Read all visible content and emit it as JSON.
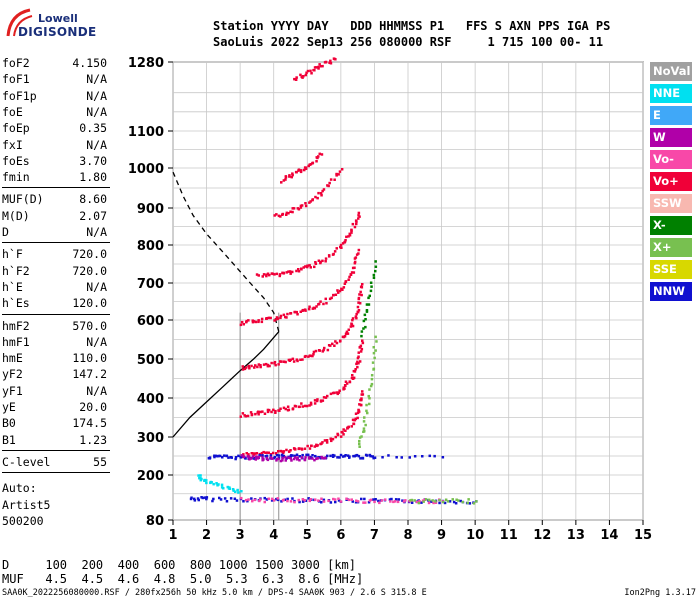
{
  "logo": {
    "line1": "Lowell",
    "line2": "DIGISONDE"
  },
  "header": {
    "labels": "Station YYYY DAY   DDD HHMMSS P1   FFS S AXN PPS IGA PS",
    "values": "SaoLuis 2022 Sep13 256 080000 RSF     1 715 100 00- 11"
  },
  "params": {
    "group1": [
      {
        "k": "foF2",
        "v": "4.150"
      },
      {
        "k": "foF1",
        "v": "N/A"
      },
      {
        "k": "foF1p",
        "v": "N/A"
      },
      {
        "k": "foE",
        "v": "N/A"
      },
      {
        "k": "foEp",
        "v": "0.35"
      },
      {
        "k": "fxI",
        "v": "N/A"
      },
      {
        "k": "foEs",
        "v": "3.70"
      },
      {
        "k": "fmin",
        "v": "1.80"
      }
    ],
    "group2": [
      {
        "k": "MUF(D)",
        "v": "8.60"
      },
      {
        "k": "M(D)",
        "v": "2.07"
      },
      {
        "k": "D",
        "v": "N/A"
      }
    ],
    "group3": [
      {
        "k": "h`F",
        "v": "720.0"
      },
      {
        "k": "h`F2",
        "v": "720.0"
      },
      {
        "k": "h`E",
        "v": "N/A"
      },
      {
        "k": "h`Es",
        "v": "120.0"
      }
    ],
    "group4": [
      {
        "k": "hmF2",
        "v": "570.0"
      },
      {
        "k": "hmF1",
        "v": "N/A"
      },
      {
        "k": "hmE",
        "v": "110.0"
      },
      {
        "k": "yF2",
        "v": "147.2"
      },
      {
        "k": "yF1",
        "v": "N/A"
      },
      {
        "k": "yE",
        "v": "20.0"
      },
      {
        "k": "B0",
        "v": "174.5"
      },
      {
        "k": "B1",
        "v": "1.23"
      }
    ],
    "group5": [
      {
        "k": "C-level",
        "v": "55"
      }
    ],
    "auto": [
      "Auto:",
      "Artist5",
      "500200"
    ]
  },
  "legend": [
    {
      "label": "NoVal",
      "color": "#a0a0a0"
    },
    {
      "label": "NNE",
      "color": "#00e0f0"
    },
    {
      "label": "E",
      "color": "#40a8f8"
    },
    {
      "label": "W",
      "color": "#b000a8"
    },
    {
      "label": "Vo-",
      "color": "#f848a8"
    },
    {
      "label": "Vo+",
      "color": "#f00038"
    },
    {
      "label": "SSW",
      "color": "#f8b8b0"
    },
    {
      "label": "X-",
      "color": "#008000"
    },
    {
      "label": "X+",
      "color": "#78c050"
    },
    {
      "label": "SSE",
      "color": "#d8d800"
    },
    {
      "label": "NNW",
      "color": "#1010d0"
    }
  ],
  "chart_data": {
    "type": "scatter",
    "title": "",
    "xlabel": "",
    "ylabel": "",
    "xlim": [
      1,
      15
    ],
    "x_ticks": [
      1,
      2,
      3,
      4,
      5,
      6,
      7,
      8,
      9,
      10,
      11,
      12,
      13,
      14,
      15
    ],
    "y_ticks": [
      80,
      200,
      300,
      400,
      500,
      600,
      700,
      800,
      900,
      1000,
      1100,
      1280
    ],
    "y_grid": [
      80,
      150,
      200,
      250,
      300,
      350,
      400,
      450,
      500,
      550,
      600,
      650,
      700,
      750,
      800,
      850,
      900,
      950,
      1000,
      1050,
      1100,
      1150,
      1200,
      1280
    ],
    "marker_lines_x": [
      3.0,
      4.15
    ],
    "profile_curve": {
      "x": [
        1.0,
        1.5,
        2.0,
        2.5,
        3.0,
        3.4,
        3.7,
        3.9,
        4.05,
        4.15
      ],
      "y": [
        300,
        350,
        390,
        430,
        470,
        500,
        525,
        545,
        560,
        570
      ]
    },
    "profile_dashed": {
      "x": [
        4.15,
        4.0,
        3.7,
        3.3,
        2.9,
        2.5,
        2.0,
        1.6,
        1.3,
        1.0
      ],
      "y": [
        570,
        620,
        660,
        700,
        740,
        780,
        830,
        880,
        930,
        990
      ]
    },
    "traces": [
      {
        "name": "Es band",
        "color": "#1010d0",
        "x": [
          1.5,
          2,
          3,
          4,
          5,
          6,
          7,
          8,
          9,
          10
        ],
        "y": [
          140,
          139,
          138,
          137,
          136,
          135,
          134,
          134,
          133,
          133
        ]
      },
      {
        "name": "Es band",
        "color": "#f848a8",
        "x": [
          3,
          4,
          5,
          6,
          7,
          8,
          9
        ],
        "y": [
          137,
          136,
          135,
          135,
          134,
          134,
          133
        ]
      },
      {
        "name": "Es band",
        "color": "#78c050",
        "x": [
          8,
          9,
          10
        ],
        "y": [
          134,
          133,
          133
        ]
      },
      {
        "name": "F 1st hop",
        "color": "#f00038",
        "x": [
          3.0,
          3.5,
          4.0,
          4.5,
          5.0,
          5.5,
          6.0,
          6.3,
          6.5,
          6.6
        ],
        "y": [
          255,
          258,
          262,
          268,
          276,
          290,
          310,
          335,
          370,
          420
        ]
      },
      {
        "name": "F 1st hop",
        "color": "#1010d0",
        "x": [
          2.0,
          2.5,
          3.0,
          3.5,
          4.0,
          4.5,
          5.0,
          5.5,
          6.0,
          6.5,
          7.0,
          9.0
        ],
        "y": [
          250,
          250,
          250,
          250,
          251,
          251,
          252,
          252,
          252,
          252,
          250,
          250
        ]
      },
      {
        "name": "F 2nd hop",
        "color": "#f00038",
        "x": [
          3.0,
          3.5,
          4.0,
          4.5,
          5.0,
          5.5,
          6.0,
          6.3,
          6.5,
          6.6
        ],
        "y": [
          360,
          365,
          370,
          378,
          388,
          402,
          425,
          455,
          500,
          550
        ]
      },
      {
        "name": "F 3rd hop",
        "color": "#f00038",
        "x": [
          3.0,
          3.5,
          4.0,
          4.5,
          5.0,
          5.5,
          6.0,
          6.3,
          6.5,
          6.6
        ],
        "y": [
          480,
          485,
          490,
          498,
          510,
          528,
          555,
          590,
          640,
          700
        ]
      },
      {
        "name": "F 4th hop",
        "color": "#f00038",
        "x": [
          3.0,
          3.5,
          4.0,
          4.5,
          5.0,
          5.5,
          6.0,
          6.3,
          6.5
        ],
        "y": [
          595,
          600,
          608,
          618,
          632,
          652,
          685,
          730,
          790
        ]
      },
      {
        "name": "F 5th hop",
        "color": "#f00038",
        "x": [
          3.5,
          4.0,
          4.5,
          5.0,
          5.5,
          6.0,
          6.3,
          6.5
        ],
        "y": [
          722,
          725,
          732,
          745,
          765,
          800,
          840,
          890
        ]
      },
      {
        "name": "F 6th hop",
        "color": "#f00038",
        "x": [
          4.0,
          4.5,
          5.0,
          5.5,
          6.0
        ],
        "y": [
          880,
          895,
          915,
          950,
          1000
        ]
      },
      {
        "name": "F 7th hop",
        "color": "#f00038",
        "x": [
          4.2,
          4.6,
          5.0,
          5.4
        ],
        "y": [
          970,
          990,
          1010,
          1040
        ]
      },
      {
        "name": "F 8th hop",
        "color": "#f00038",
        "x": [
          4.6,
          5.0,
          5.4,
          5.8
        ],
        "y": [
          1240,
          1255,
          1275,
          1290
        ]
      },
      {
        "name": "X trace",
        "color": "#78c050",
        "x": [
          6.5,
          6.7,
          6.9,
          7.0
        ],
        "y": [
          280,
          350,
          450,
          560
        ]
      },
      {
        "name": "X trace",
        "color": "#008000",
        "x": [
          6.6,
          6.8,
          7.0
        ],
        "y": [
          560,
          650,
          760
        ]
      },
      {
        "name": "Oblique",
        "color": "#00e0f0",
        "x": [
          1.7,
          2.0,
          2.5,
          3.0
        ],
        "y": [
          200,
          185,
          170,
          160
        ]
      },
      {
        "name": "W scatter",
        "color": "#b000a8",
        "x": [
          3.0,
          3.5,
          4.0,
          4.5,
          5.0,
          5.5
        ],
        "y": [
          250,
          246,
          244,
          245,
          247,
          248
        ]
      }
    ]
  }
}
